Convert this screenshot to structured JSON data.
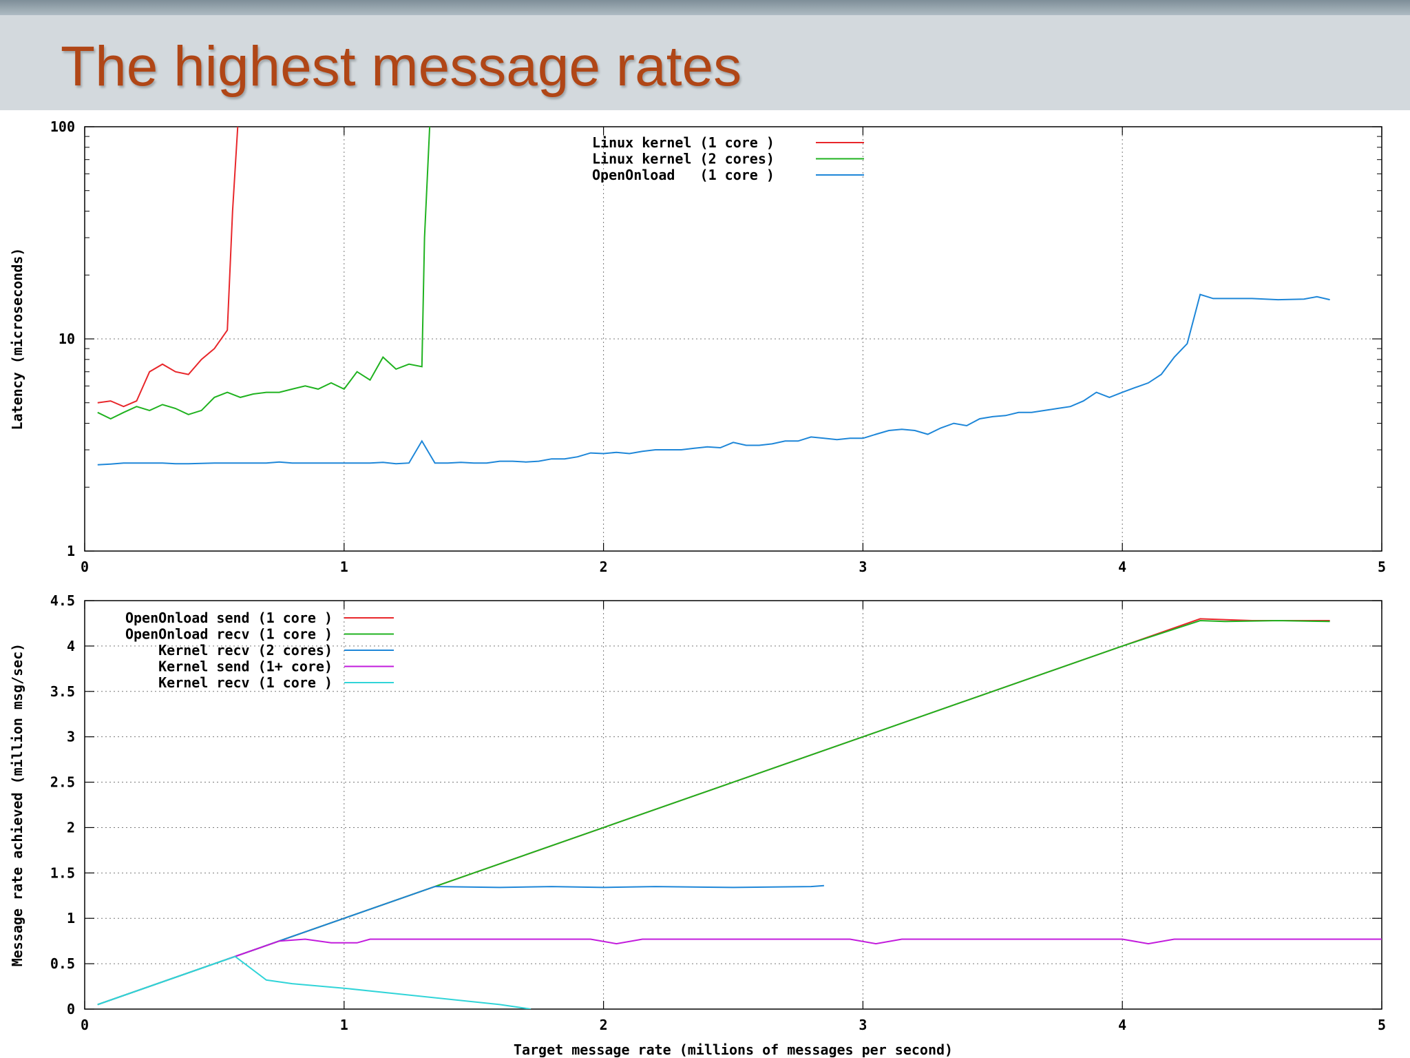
{
  "slide": {
    "title": "The highest message rates"
  },
  "chart_data": [
    {
      "type": "line",
      "title": "",
      "xlabel": "",
      "ylabel": "Latency (microseconds)",
      "xlim": [
        0,
        5
      ],
      "ylim": [
        1,
        100
      ],
      "yscale": "log",
      "grid": true,
      "legend": "top-center",
      "x_ticks": [
        "0",
        "1",
        "2",
        "3",
        "4",
        "5"
      ],
      "y_ticks": [
        "1",
        "10",
        "100"
      ],
      "series": [
        {
          "name": "Linux kernel (1 core )",
          "color": "#e8262a",
          "points": [
            [
              0.05,
              5.0
            ],
            [
              0.1,
              5.1
            ],
            [
              0.15,
              4.8
            ],
            [
              0.2,
              5.1
            ],
            [
              0.25,
              7.0
            ],
            [
              0.3,
              7.6
            ],
            [
              0.35,
              7.0
            ],
            [
              0.4,
              6.8
            ],
            [
              0.45,
              8.0
            ],
            [
              0.5,
              9.0
            ],
            [
              0.55,
              11.0
            ],
            [
              0.57,
              40
            ],
            [
              0.59,
              100
            ]
          ]
        },
        {
          "name": "Linux kernel (2 cores)",
          "color": "#1fb21f",
          "points": [
            [
              0.05,
              4.5
            ],
            [
              0.1,
              4.2
            ],
            [
              0.15,
              4.5
            ],
            [
              0.2,
              4.8
            ],
            [
              0.25,
              4.6
            ],
            [
              0.3,
              4.9
            ],
            [
              0.35,
              4.7
            ],
            [
              0.4,
              4.4
            ],
            [
              0.45,
              4.6
            ],
            [
              0.5,
              5.3
            ],
            [
              0.55,
              5.6
            ],
            [
              0.6,
              5.3
            ],
            [
              0.65,
              5.5
            ],
            [
              0.7,
              5.6
            ],
            [
              0.75,
              5.6
            ],
            [
              0.8,
              5.8
            ],
            [
              0.85,
              6.0
            ],
            [
              0.9,
              5.8
            ],
            [
              0.95,
              6.2
            ],
            [
              1.0,
              5.8
            ],
            [
              1.05,
              7.0
            ],
            [
              1.1,
              6.4
            ],
            [
              1.15,
              8.2
            ],
            [
              1.2,
              7.2
            ],
            [
              1.25,
              7.6
            ],
            [
              1.3,
              7.4
            ],
            [
              1.31,
              30
            ],
            [
              1.33,
              100
            ]
          ]
        },
        {
          "name": "OpenOnload   (1 core )",
          "color": "#1d86d8",
          "points": [
            [
              0.05,
              2.55
            ],
            [
              0.1,
              2.57
            ],
            [
              0.15,
              2.6
            ],
            [
              0.2,
              2.6
            ],
            [
              0.3,
              2.6
            ],
            [
              0.35,
              2.58
            ],
            [
              0.4,
              2.58
            ],
            [
              0.5,
              2.6
            ],
            [
              0.6,
              2.6
            ],
            [
              0.7,
              2.6
            ],
            [
              0.75,
              2.63
            ],
            [
              0.8,
              2.6
            ],
            [
              0.9,
              2.6
            ],
            [
              1.0,
              2.6
            ],
            [
              1.1,
              2.6
            ],
            [
              1.15,
              2.62
            ],
            [
              1.2,
              2.58
            ],
            [
              1.25,
              2.6
            ],
            [
              1.3,
              3.3
            ],
            [
              1.35,
              2.6
            ],
            [
              1.4,
              2.6
            ],
            [
              1.45,
              2.62
            ],
            [
              1.5,
              2.6
            ],
            [
              1.55,
              2.6
            ],
            [
              1.6,
              2.65
            ],
            [
              1.65,
              2.65
            ],
            [
              1.7,
              2.63
            ],
            [
              1.75,
              2.65
            ],
            [
              1.8,
              2.72
            ],
            [
              1.85,
              2.72
            ],
            [
              1.9,
              2.78
            ],
            [
              1.95,
              2.9
            ],
            [
              2.0,
              2.88
            ],
            [
              2.05,
              2.92
            ],
            [
              2.1,
              2.88
            ],
            [
              2.15,
              2.95
            ],
            [
              2.2,
              3.0
            ],
            [
              2.3,
              3.0
            ],
            [
              2.35,
              3.05
            ],
            [
              2.4,
              3.1
            ],
            [
              2.45,
              3.07
            ],
            [
              2.5,
              3.25
            ],
            [
              2.55,
              3.15
            ],
            [
              2.6,
              3.15
            ],
            [
              2.65,
              3.2
            ],
            [
              2.7,
              3.3
            ],
            [
              2.75,
              3.3
            ],
            [
              2.8,
              3.45
            ],
            [
              2.85,
              3.4
            ],
            [
              2.9,
              3.35
            ],
            [
              2.95,
              3.4
            ],
            [
              3.0,
              3.4
            ],
            [
              3.05,
              3.55
            ],
            [
              3.1,
              3.7
            ],
            [
              3.15,
              3.75
            ],
            [
              3.2,
              3.7
            ],
            [
              3.25,
              3.55
            ],
            [
              3.3,
              3.8
            ],
            [
              3.35,
              4.0
            ],
            [
              3.4,
              3.9
            ],
            [
              3.45,
              4.2
            ],
            [
              3.5,
              4.3
            ],
            [
              3.55,
              4.35
            ],
            [
              3.6,
              4.5
            ],
            [
              3.65,
              4.5
            ],
            [
              3.7,
              4.6
            ],
            [
              3.75,
              4.7
            ],
            [
              3.8,
              4.8
            ],
            [
              3.85,
              5.1
            ],
            [
              3.9,
              5.6
            ],
            [
              3.95,
              5.3
            ],
            [
              4.0,
              5.6
            ],
            [
              4.05,
              5.9
            ],
            [
              4.1,
              6.2
            ],
            [
              4.15,
              6.8
            ],
            [
              4.2,
              8.2
            ],
            [
              4.25,
              9.5
            ],
            [
              4.3,
              16.2
            ],
            [
              4.35,
              15.5
            ],
            [
              4.4,
              15.5
            ],
            [
              4.5,
              15.5
            ],
            [
              4.6,
              15.3
            ],
            [
              4.7,
              15.4
            ],
            [
              4.75,
              15.8
            ],
            [
              4.8,
              15.3
            ]
          ]
        }
      ]
    },
    {
      "type": "line",
      "title": "",
      "xlabel": "Target message rate (millions of messages per second)",
      "ylabel": "Message rate achieved (million msg/sec)",
      "xlim": [
        0,
        5
      ],
      "ylim": [
        0,
        4.5
      ],
      "grid": true,
      "legend": "top-left",
      "x_ticks": [
        "0",
        "1",
        "2",
        "3",
        "4",
        "5"
      ],
      "y_ticks": [
        "0",
        "0.5",
        "1",
        "1.5",
        "2",
        "2.5",
        "3",
        "3.5",
        "4",
        "4.5"
      ],
      "series": [
        {
          "name": "OpenOnload send (1 core )",
          "color": "#e8262a",
          "points": [
            [
              0.05,
              0.05
            ],
            [
              4.3,
              4.3
            ],
            [
              4.5,
              4.28
            ],
            [
              4.8,
              4.28
            ]
          ]
        },
        {
          "name": "OpenOnload recv (1 core )",
          "color": "#1fb21f",
          "points": [
            [
              0.05,
              0.05
            ],
            [
              1.0,
              1.0
            ],
            [
              1.5,
              1.5
            ],
            [
              2.0,
              2.0
            ],
            [
              2.5,
              2.5
            ],
            [
              3.0,
              3.0
            ],
            [
              3.5,
              3.5
            ],
            [
              4.0,
              4.0
            ],
            [
              4.3,
              4.28
            ],
            [
              4.4,
              4.27
            ],
            [
              4.6,
              4.28
            ],
            [
              4.8,
              4.27
            ]
          ]
        },
        {
          "name": "Kernel recv (2 cores)",
          "color": "#1d86d8",
          "points": [
            [
              0.05,
              0.05
            ],
            [
              0.6,
              0.6
            ],
            [
              1.0,
              1.0
            ],
            [
              1.35,
              1.35
            ],
            [
              1.6,
              1.34
            ],
            [
              1.8,
              1.35
            ],
            [
              2.0,
              1.34
            ],
            [
              2.2,
              1.35
            ],
            [
              2.5,
              1.34
            ],
            [
              2.8,
              1.35
            ],
            [
              2.85,
              1.36
            ]
          ]
        },
        {
          "name": "Kernel send (1+ core)",
          "color": "#c21bdc",
          "points": [
            [
              0.55,
              0.55
            ],
            [
              0.75,
              0.75
            ],
            [
              0.85,
              0.77
            ],
            [
              0.95,
              0.73
            ],
            [
              1.05,
              0.73
            ],
            [
              1.1,
              0.77
            ],
            [
              1.95,
              0.77
            ],
            [
              2.05,
              0.72
            ],
            [
              2.15,
              0.77
            ],
            [
              2.95,
              0.77
            ],
            [
              3.05,
              0.72
            ],
            [
              3.15,
              0.77
            ],
            [
              4.0,
              0.77
            ],
            [
              4.1,
              0.72
            ],
            [
              4.2,
              0.77
            ],
            [
              5.0,
              0.77
            ]
          ]
        },
        {
          "name": "Kernel recv (1 core )",
          "color": "#30d4d8",
          "points": [
            [
              0.05,
              0.05
            ],
            [
              0.58,
              0.58
            ],
            [
              0.7,
              0.32
            ],
            [
              0.8,
              0.28
            ],
            [
              1.0,
              0.23
            ],
            [
              1.2,
              0.17
            ],
            [
              1.4,
              0.11
            ],
            [
              1.6,
              0.05
            ],
            [
              1.72,
              0.0
            ]
          ]
        }
      ]
    }
  ]
}
